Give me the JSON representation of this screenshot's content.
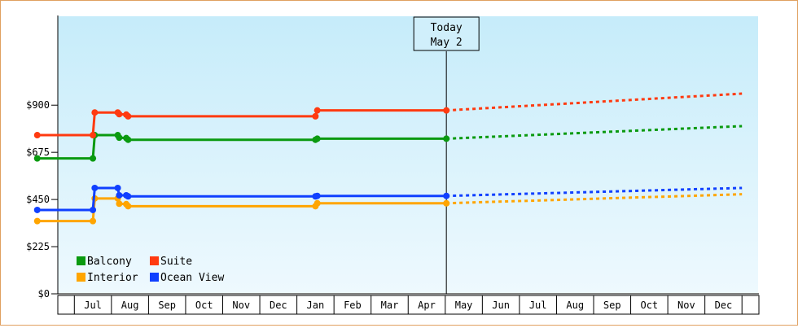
{
  "chart_data": {
    "type": "line",
    "y_axis": {
      "ticks": [
        "$0",
        "$225",
        "$450",
        "$675",
        "$900"
      ],
      "ylim": [
        0,
        1000
      ]
    },
    "x_axis": {
      "months": [
        "Jul",
        "Aug",
        "Sep",
        "Oct",
        "Nov",
        "Dec",
        "Jan",
        "Feb",
        "Mar",
        "Apr",
        "May",
        "Jun",
        "Jul",
        "Aug",
        "Sep",
        "Oct",
        "Nov",
        "Dec"
      ],
      "start": "Jun 1",
      "range_months": [
        0,
        19
      ]
    },
    "today": {
      "line1": "Today",
      "line2": "May 2",
      "x": 11.03
    },
    "series": [
      {
        "name": "Balcony",
        "color": "#0a9a10",
        "points": [
          [
            0,
            646
          ],
          [
            1.5,
            646
          ],
          [
            1.55,
            757
          ],
          [
            2.17,
            757
          ],
          [
            2.21,
            745
          ],
          [
            2.4,
            743
          ],
          [
            2.45,
            735
          ],
          [
            7.5,
            735
          ],
          [
            7.55,
            740
          ],
          [
            11.03,
            740
          ]
        ],
        "forecast": [
          [
            11.03,
            740
          ],
          [
            19,
            800
          ]
        ]
      },
      {
        "name": "Suite",
        "color": "#ff3a10",
        "points": [
          [
            0,
            757
          ],
          [
            1.5,
            757
          ],
          [
            1.55,
            865
          ],
          [
            2.17,
            865
          ],
          [
            2.21,
            857
          ],
          [
            2.4,
            855
          ],
          [
            2.45,
            847
          ],
          [
            7.5,
            847
          ],
          [
            7.55,
            875
          ],
          [
            11.03,
            875
          ]
        ],
        "forecast": [
          [
            11.03,
            875
          ],
          [
            19,
            955
          ]
        ]
      },
      {
        "name": "Interior",
        "color": "#ffa500",
        "points": [
          [
            0,
            347
          ],
          [
            1.5,
            347
          ],
          [
            1.55,
            455
          ],
          [
            2.17,
            455
          ],
          [
            2.21,
            430
          ],
          [
            2.4,
            428
          ],
          [
            2.45,
            418
          ],
          [
            7.5,
            418
          ],
          [
            7.55,
            432
          ],
          [
            11.03,
            432
          ]
        ],
        "forecast": [
          [
            11.03,
            432
          ],
          [
            19,
            475
          ]
        ]
      },
      {
        "name": "Ocean View",
        "color": "#1040ff",
        "points": [
          [
            0,
            400
          ],
          [
            1.5,
            400
          ],
          [
            1.55,
            505
          ],
          [
            2.17,
            505
          ],
          [
            2.21,
            470
          ],
          [
            2.4,
            470
          ],
          [
            2.45,
            465
          ],
          [
            7.5,
            465
          ],
          [
            7.55,
            467
          ],
          [
            11.03,
            467
          ]
        ],
        "forecast": [
          [
            11.03,
            467
          ],
          [
            19,
            505
          ]
        ]
      }
    ]
  }
}
